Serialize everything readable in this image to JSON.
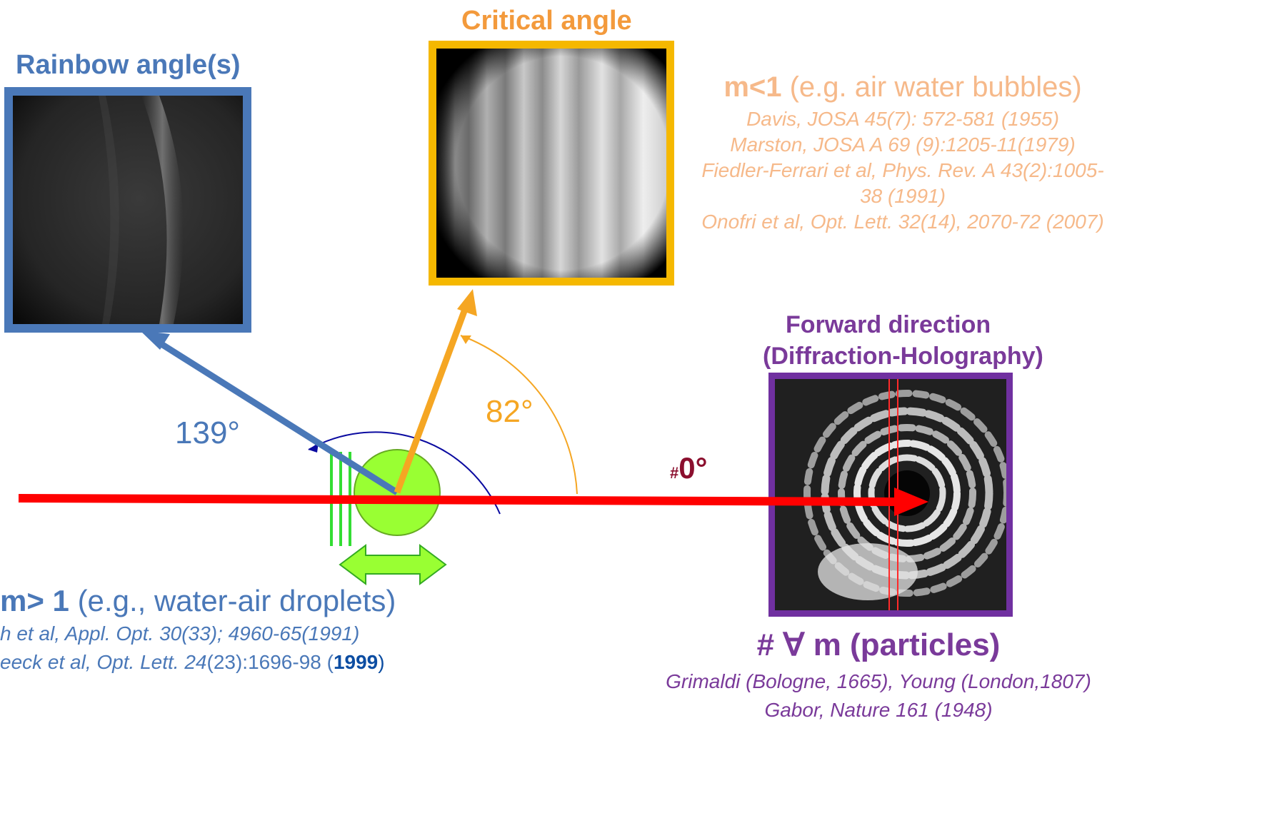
{
  "rainbow": {
    "title": "Rainbow angle(s)",
    "angle_label": "139°"
  },
  "critical": {
    "title": "Critical angle",
    "angle_label": "82°"
  },
  "forward": {
    "title_line1": "Forward direction",
    "title_line2": "(Diffraction-Holography)",
    "zero_hash": "#",
    "zero_label": "0°"
  },
  "m_less_1": {
    "bold": "m<1",
    "rest": " (e.g. air water bubbles)",
    "refs": [
      "Davis, JOSA 45(7): 572-581 (1955)",
      "Marston, JOSA A 69 (9):1205-11(1979)",
      "Fiedler-Ferrari et al,  Phys. Rev. A 43(2):1005-",
      "38 (1991)",
      "Onofri et al, Opt. Lett. 32(14), 2070-72 (2007)"
    ]
  },
  "m_greater_1": {
    "bold": "m> 1",
    "rest": " (e.g., water-air droplets)",
    "ref1": "h et al, Appl. Opt. 30(33); 4960-65(1991)",
    "ref2_a": "eeck et al, Opt. Lett. 24",
    "ref2_b": "(23):1696-98 (",
    "ref2_c": "1999",
    "ref2_d": ")"
  },
  "all_particles": {
    "label": "# ∀ m (particles)",
    "ref1": "Grimaldi (Bologne, 1665), Young (London,1807)",
    "ref2": "Gabor, Nature 161 (1948)"
  },
  "colors": {
    "rainbow_blue": "#4a78b8",
    "critical_orange": "#f5a623",
    "forward_purple": "#7030a0",
    "beam_red": "#ff0000",
    "particle_green": "#99ff33",
    "zero_label": "#8b0f2e"
  }
}
